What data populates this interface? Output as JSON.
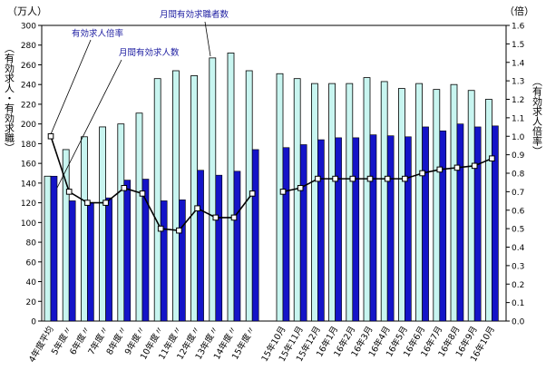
{
  "chart_data": {
    "type": "bar",
    "y_unit_left": "（万人）",
    "y_unit_right": "（倍）",
    "y_label_left": "（有効求人・有効求職）",
    "y_label_right": "（有効求人倍率）",
    "ylim_left": [
      0,
      300
    ],
    "ylim_right": [
      0,
      1.6
    ],
    "yticks_left": [
      "0",
      "20",
      "40",
      "60",
      "80",
      "100",
      "120",
      "140",
      "160",
      "180",
      "200",
      "220",
      "240",
      "260",
      "280",
      "300"
    ],
    "yticks_right": [
      "0.0",
      "0.1",
      "0.2",
      "0.3",
      "0.4",
      "0.5",
      "0.6",
      "0.7",
      "0.8",
      "0.9",
      "1.0",
      "1.1",
      "1.2",
      "1.3",
      "1.4",
      "1.5",
      "1.6"
    ],
    "groups": [
      {
        "categories": [
          "4年度平均",
          "5年度〃",
          "6年度〃",
          "7年度〃",
          "8年度〃",
          "9年度〃",
          "10年度〃",
          "11年度〃",
          "12年度〃",
          "13年度〃",
          "14年度〃",
          "15年度〃"
        ],
        "seekers": [
          147,
          174,
          187,
          197,
          200,
          211,
          246,
          254,
          249,
          267,
          272,
          254
        ],
        "openings": [
          147,
          122,
          120,
          125,
          143,
          144,
          122,
          123,
          153,
          148,
          152,
          174
        ],
        "ratio": [
          1.0,
          0.7,
          0.64,
          0.64,
          0.72,
          0.69,
          0.5,
          0.49,
          0.61,
          0.56,
          0.56,
          0.69
        ]
      },
      {
        "categories": [
          "15年10月",
          "15年11月",
          "15年12月",
          "16年1月",
          "16年2月",
          "16年3月",
          "16年4月",
          "16年5月",
          "16年6月",
          "16年7月",
          "16年8月",
          "16年9月",
          "16年10月"
        ],
        "seekers": [
          251,
          246,
          241,
          241,
          241,
          247,
          243,
          236,
          241,
          235,
          240,
          234,
          225
        ],
        "openings": [
          176,
          179,
          184,
          186,
          186,
          189,
          188,
          187,
          197,
          193,
          200,
          197,
          198
        ],
        "ratio": [
          0.7,
          0.72,
          0.77,
          0.77,
          0.77,
          0.77,
          0.77,
          0.77,
          0.8,
          0.82,
          0.83,
          0.84,
          0.88
        ]
      }
    ],
    "series": [
      {
        "name": "月間有効求職者数",
        "key": "seekers",
        "color": "#c8f5f0"
      },
      {
        "name": "月間有効求人数",
        "key": "openings",
        "color": "#1414c8"
      },
      {
        "name": "有効求人倍率",
        "key": "ratio",
        "color": "#000000"
      }
    ]
  }
}
